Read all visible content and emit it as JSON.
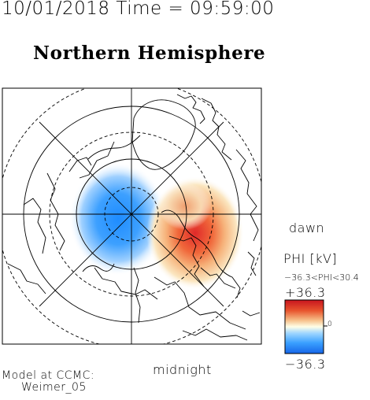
{
  "header": {
    "datetime": "10/01/2018 Time = 09:59:00",
    "hemisphere": "Northern Hemisphere"
  },
  "map": {
    "direction_labels": {
      "right": "dawn",
      "bottom": "midnight"
    },
    "projection": "polar stereographic, geomagnetic pole at center",
    "coastline_color": "#000000"
  },
  "colorbar": {
    "title": "PHI [kV]",
    "range_text": "−36.3<PHI<30.4",
    "max_label": "+36.3",
    "min_label": "−36.3",
    "zero_label": "0",
    "min_value": -36.3,
    "max_value": 36.3,
    "actual_min": -36.3,
    "actual_max": 30.4,
    "colors": {
      "negative": "#1f8fff",
      "zero": "#ffffe8",
      "positive": "#e8262a"
    }
  },
  "model": {
    "line1": "Model at CCMC:",
    "line2": "Weimer_05"
  }
}
